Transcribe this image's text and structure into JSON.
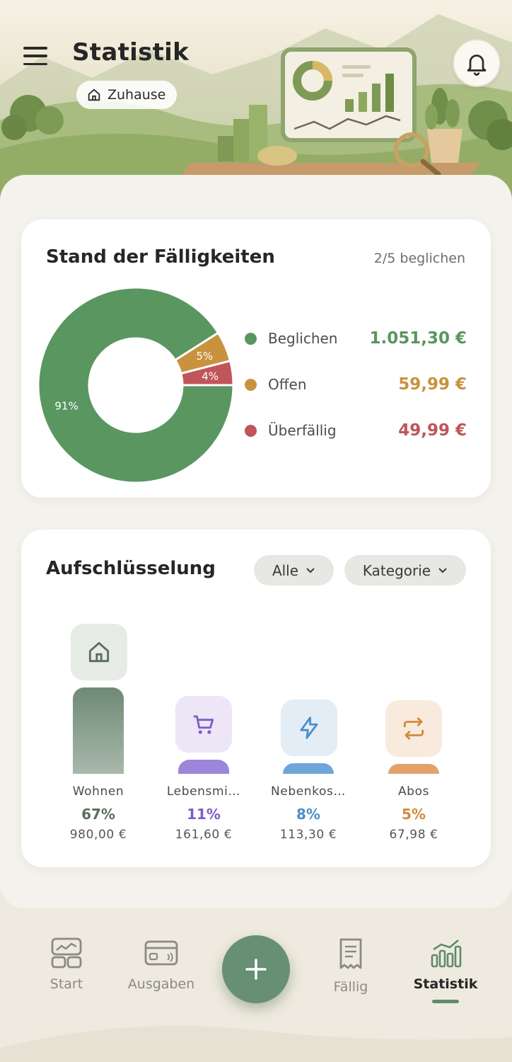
{
  "header": {
    "title": "Statistik",
    "household": "Zuhause"
  },
  "dues": {
    "title": "Stand der Fälligkeiten",
    "count_label": "2/5 beglichen",
    "legend": [
      {
        "label": "Beglichen",
        "amount": "1.051,30 €",
        "color": "#5a9660"
      },
      {
        "label": "Offen",
        "amount": "59,99 €",
        "color": "#c9923e"
      },
      {
        "label": "Überfällig",
        "amount": "49,99 €",
        "color": "#c0555a"
      }
    ],
    "slices": [
      {
        "label": "91%",
        "value": 91,
        "color": "#5a9660"
      },
      {
        "label": "5%",
        "value": 5,
        "color": "#c9923e"
      },
      {
        "label": "4%",
        "value": 4,
        "color": "#c0555a"
      }
    ]
  },
  "breakdown": {
    "title": "Aufschlüsselung",
    "filter_all": "Alle",
    "filter_group": "Kategorie",
    "categories": [
      {
        "name": "Wohnen",
        "pct": "67%",
        "amount": "980,00 €",
        "share": 67,
        "color": "#5a6e5e",
        "icon": "home-icon"
      },
      {
        "name": "Lebensmi…",
        "pct": "11%",
        "amount": "161,60 €",
        "share": 11,
        "color": "#7c5cc9",
        "icon": "cart-icon"
      },
      {
        "name": "Nebenkos…",
        "pct": "8%",
        "amount": "113,30 €",
        "share": 8,
        "color": "#4b8ec9",
        "icon": "bolt-icon"
      },
      {
        "name": "Abos",
        "pct": "5%",
        "amount": "67,98 €",
        "share": 5,
        "color": "#d08a3c",
        "icon": "repeat-icon"
      }
    ]
  },
  "nav": {
    "items": [
      {
        "label": "Start",
        "icon": "dashboard-icon"
      },
      {
        "label": "Ausgaben",
        "icon": "card-icon"
      },
      {
        "label": "Fällig",
        "icon": "receipt-icon"
      },
      {
        "label": "Statistik",
        "icon": "chart-icon",
        "active": true
      }
    ],
    "fab_icon": "plus-icon"
  }
}
